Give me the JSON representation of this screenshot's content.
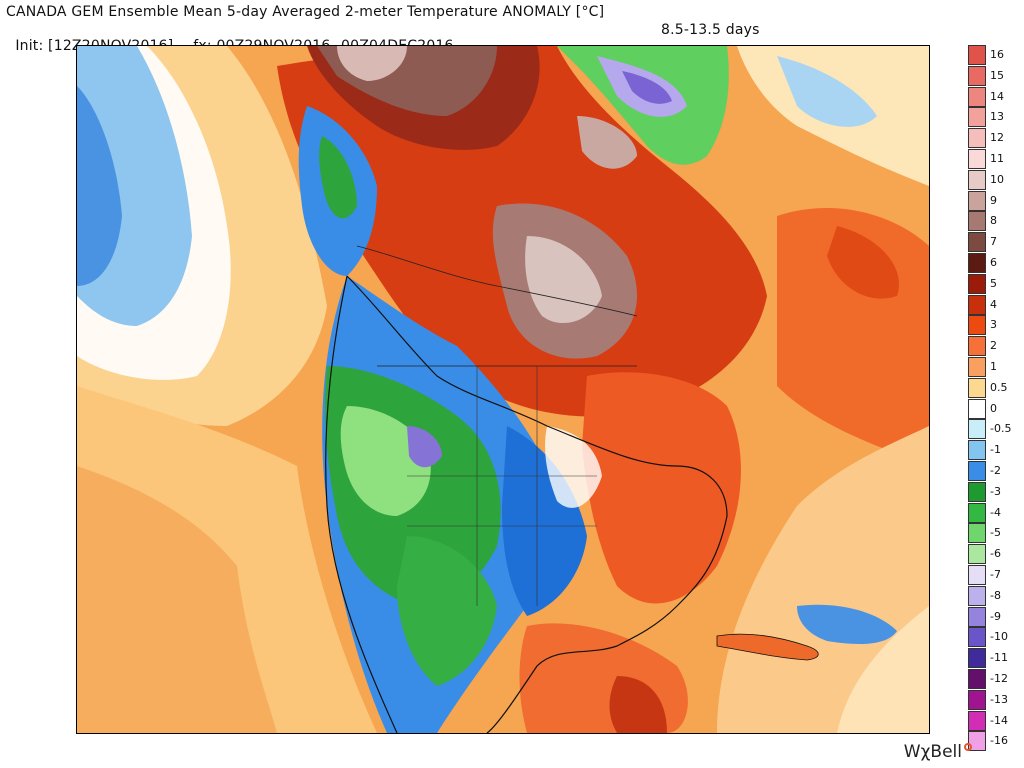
{
  "header": {
    "title": "CANADA GEM Ensemble Mean 5-day Averaged 2-meter Temperature ANOMALY [°C]",
    "init": "Init: [12Z20NOV2016] -- fx: 00Z29NOV2016--00Z04DEC2016",
    "days": "8.5-13.5 days"
  },
  "brand": {
    "name": "WχBell"
  },
  "colorbar": {
    "entries": [
      {
        "label": "16",
        "color": "#e0534a"
      },
      {
        "label": "15",
        "color": "#e86a62"
      },
      {
        "label": "14",
        "color": "#ee8680"
      },
      {
        "label": "13",
        "color": "#f2a19d"
      },
      {
        "label": "12",
        "color": "#f6bebb"
      },
      {
        "label": "11",
        "color": "#f9dad8"
      },
      {
        "label": "10",
        "color": "#e7cbc6"
      },
      {
        "label": "9",
        "color": "#c9a39c"
      },
      {
        "label": "8",
        "color": "#a67a72"
      },
      {
        "label": "7",
        "color": "#7d4a42"
      },
      {
        "label": "6",
        "color": "#5b1a12"
      },
      {
        "label": "5",
        "color": "#9c1a0a"
      },
      {
        "label": "4",
        "color": "#c82f0c"
      },
      {
        "label": "3",
        "color": "#ec4a10"
      },
      {
        "label": "2",
        "color": "#f6703a"
      },
      {
        "label": "1",
        "color": "#f9a060"
      },
      {
        "label": "0.5",
        "color": "#fdd890"
      },
      {
        "label": "0",
        "color": "#ffffff"
      },
      {
        "label": "-0.5",
        "color": "#c9eefa"
      },
      {
        "label": "-1",
        "color": "#84c4f0"
      },
      {
        "label": "-2",
        "color": "#3a8de6"
      },
      {
        "label": "-3",
        "color": "#1f9a30"
      },
      {
        "label": "-4",
        "color": "#32b843"
      },
      {
        "label": "-5",
        "color": "#6fd66e"
      },
      {
        "label": "-6",
        "color": "#a9e89e"
      },
      {
        "label": "-7",
        "color": "#e6ddf6"
      },
      {
        "label": "-8",
        "color": "#bdb0ec"
      },
      {
        "label": "-9",
        "color": "#9583dd"
      },
      {
        "label": "-10",
        "color": "#6a55c9"
      },
      {
        "label": "-11",
        "color": "#3f2b9a"
      },
      {
        "label": "-12",
        "color": "#640f6a"
      },
      {
        "label": "-13",
        "color": "#a0148f"
      },
      {
        "label": "-14",
        "color": "#d12eb5"
      },
      {
        "label": "-16",
        "color": "#f0a0e6"
      }
    ]
  },
  "map": {
    "region": "North America",
    "variable": "2-meter temperature anomaly"
  }
}
